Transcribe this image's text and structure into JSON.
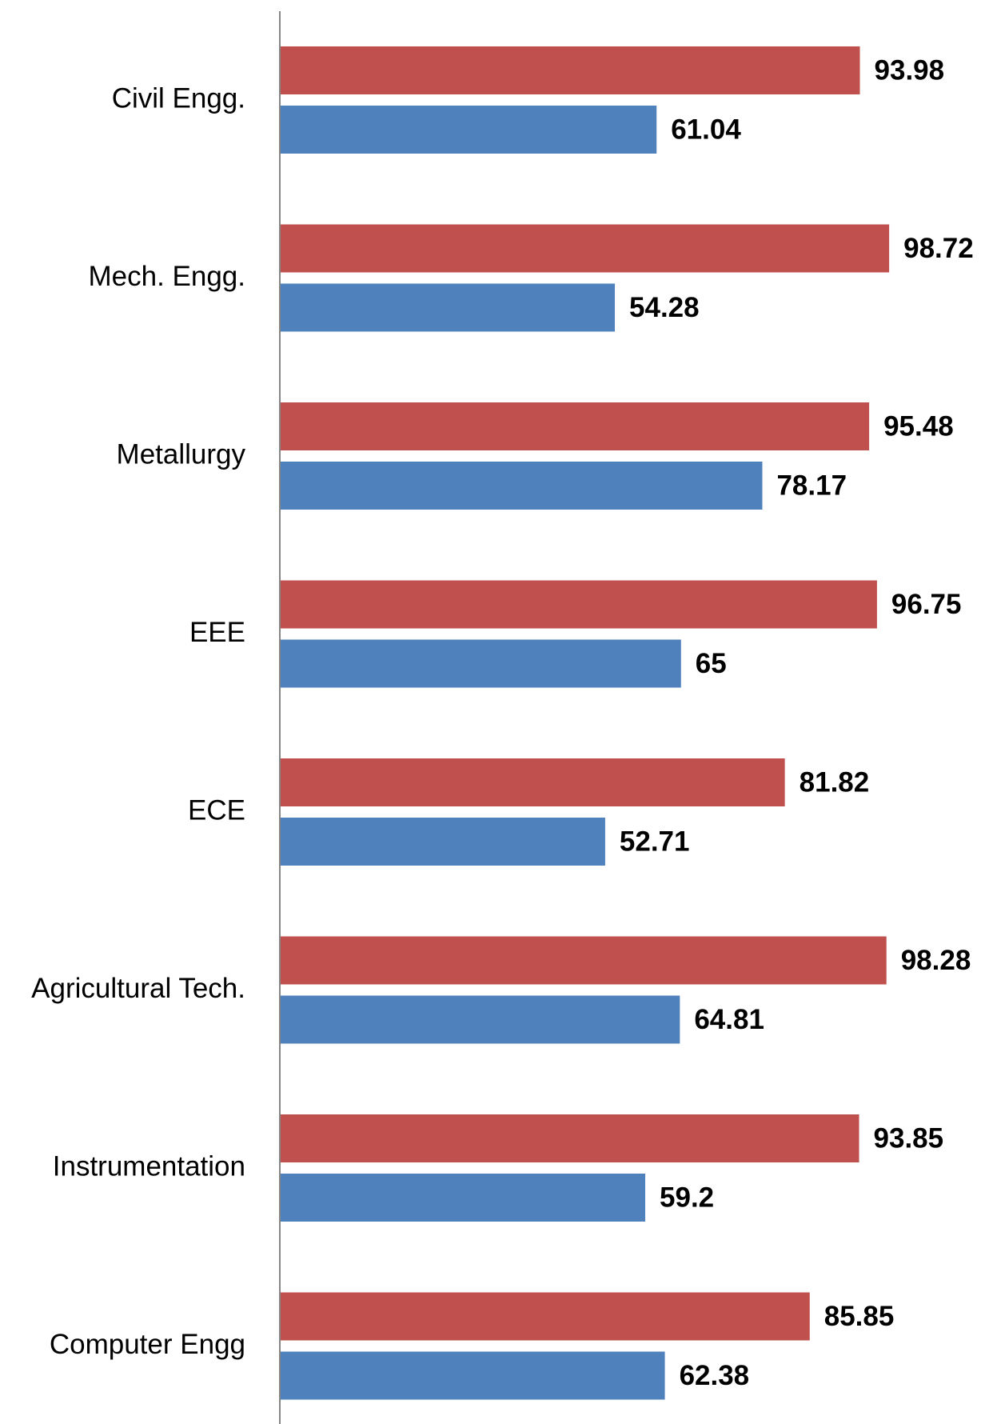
{
  "chart_data": {
    "type": "barh",
    "categories": [
      "Civil Engg.",
      "Mech. Engg.",
      "Metallurgy",
      "EEE",
      "ECE",
      "Agricultural Tech.",
      "Instrumentation",
      "Computer Engg"
    ],
    "series": [
      {
        "color": "#c0504d",
        "values": [
          93.98,
          98.72,
          95.48,
          96.75,
          81.82,
          98.28,
          93.85,
          85.85
        ]
      },
      {
        "color": "#4f81bd",
        "values": [
          61.04,
          54.28,
          78.17,
          65,
          52.71,
          64.81,
          59.2,
          62.38
        ]
      }
    ],
    "xlim": [
      0,
      100
    ]
  }
}
